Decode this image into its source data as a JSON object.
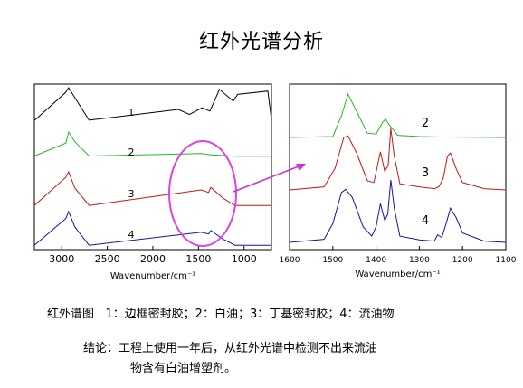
{
  "title": "红外光谱分析",
  "caption": "红外谱图   1：边框密封胶；2：白油；3：丁基密封胶；4：流油物",
  "conclusion": {
    "line1": "结论：工程上使用一年后，从红外光谱中检测不出来流油",
    "line2": "物含有白油增塑剂。"
  },
  "colors": {
    "1": "#000000",
    "2": "#22bb22",
    "3": "#c81414",
    "4": "#1414a0",
    "ellipse": "#e040e0",
    "arrow": "#cc33cc"
  },
  "chart_data": [
    {
      "type": "line",
      "title": "",
      "xlabel": "Wavenumber/cm⁻¹",
      "ylabel": "",
      "xlim": [
        3300,
        700
      ],
      "x_reversed": true,
      "xticks": [
        3000,
        2500,
        2000,
        1500,
        1000
      ],
      "stacked_offsets": true,
      "series": [
        {
          "name": "1",
          "x": [
            3300,
            2960,
            2925,
            2855,
            2700,
            1720,
            1600,
            1460,
            1375,
            1270,
            1120,
            1070,
            740,
            700
          ],
          "y": [
            0.02,
            0.85,
            1.0,
            0.7,
            0.03,
            0.35,
            0.2,
            0.4,
            0.3,
            0.95,
            0.6,
            0.8,
            0.9,
            0.05
          ]
        },
        {
          "name": "2",
          "x": [
            3300,
            2955,
            2925,
            2855,
            2700,
            1460,
            1378,
            1100,
            700
          ],
          "y": [
            0.02,
            0.55,
            1.0,
            0.6,
            0.02,
            0.12,
            0.07,
            0.01,
            0.01
          ]
        },
        {
          "name": "3",
          "x": [
            3300,
            2955,
            2925,
            2855,
            2700,
            1470,
            1390,
            1365,
            1230,
            1100,
            700
          ],
          "y": [
            0.02,
            0.8,
            0.95,
            0.5,
            0.02,
            0.45,
            0.38,
            0.52,
            0.22,
            0.02,
            0.02
          ]
        },
        {
          "name": "4",
          "x": [
            3300,
            2955,
            2925,
            2855,
            2700,
            1470,
            1390,
            1365,
            1230,
            1100,
            700
          ],
          "y": [
            0.02,
            0.8,
            1.0,
            0.55,
            0.02,
            0.4,
            0.35,
            0.45,
            0.2,
            0.02,
            0.02
          ]
        }
      ]
    },
    {
      "type": "line",
      "title": "",
      "xlabel": "Wavenumber/cm⁻¹",
      "ylabel": "",
      "xlim": [
        1600,
        1100
      ],
      "x_reversed": true,
      "xticks": [
        1600,
        1500,
        1400,
        1300,
        1200,
        1100
      ],
      "stacked_offsets": true,
      "series": [
        {
          "name": "2",
          "x": [
            1600,
            1500,
            1480,
            1465,
            1450,
            1420,
            1400,
            1385,
            1378,
            1370,
            1350,
            1300,
            1250,
            1100
          ],
          "y": [
            0.0,
            0.02,
            0.5,
            1.0,
            0.7,
            0.1,
            0.08,
            0.35,
            0.42,
            0.3,
            0.05,
            0.02,
            0.01,
            0.0
          ]
        },
        {
          "name": "3",
          "x": [
            1600,
            1520,
            1495,
            1475,
            1465,
            1445,
            1420,
            1405,
            1390,
            1380,
            1372,
            1366,
            1358,
            1345,
            1300,
            1265,
            1255,
            1245,
            1235,
            1228,
            1215,
            1200,
            1150,
            1100
          ],
          "y": [
            0.0,
            0.05,
            0.35,
            0.85,
            0.88,
            0.6,
            0.15,
            0.12,
            0.62,
            0.3,
            0.4,
            1.0,
            0.55,
            0.1,
            0.05,
            0.02,
            0.05,
            0.18,
            0.55,
            0.6,
            0.35,
            0.12,
            0.02,
            0.0
          ]
        },
        {
          "name": "4",
          "x": [
            1600,
            1520,
            1500,
            1480,
            1470,
            1455,
            1430,
            1410,
            1400,
            1390,
            1380,
            1373,
            1366,
            1358,
            1345,
            1300,
            1265,
            1258,
            1248,
            1238,
            1228,
            1215,
            1200,
            1150,
            1100
          ],
          "y": [
            0.0,
            0.05,
            0.3,
            0.8,
            0.85,
            0.72,
            0.25,
            0.1,
            0.25,
            0.62,
            0.35,
            0.45,
            1.0,
            0.55,
            0.1,
            0.04,
            0.02,
            0.12,
            0.08,
            0.3,
            0.55,
            0.4,
            0.15,
            0.02,
            0.0
          ]
        }
      ]
    }
  ]
}
